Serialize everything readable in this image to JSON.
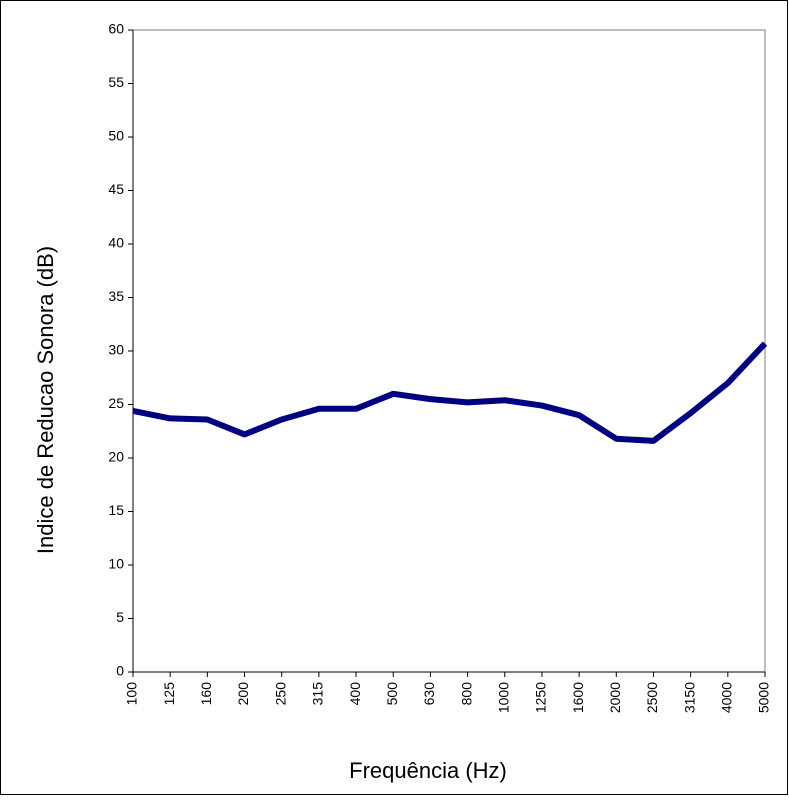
{
  "chart_data": {
    "type": "line",
    "x_label": "Frequência (Hz)",
    "y_label": "Indice de Reducao Sonora (dB)",
    "categories": [
      "100",
      "125",
      "160",
      "200",
      "250",
      "315",
      "400",
      "500",
      "630",
      "800",
      "1000",
      "1250",
      "1600",
      "2000",
      "2500",
      "3150",
      "4000",
      "5000"
    ],
    "series": [
      {
        "color": "#000080",
        "values": [
          24.4,
          23.7,
          23.6,
          22.2,
          23.6,
          24.6,
          24.6,
          26.0,
          25.5,
          25.2,
          25.4,
          24.9,
          24.0,
          21.8,
          21.6,
          24.2,
          27.0,
          30.7
        ]
      }
    ],
    "ylim": [
      0,
      60
    ],
    "yticks": [
      0,
      5,
      10,
      15,
      20,
      25,
      30,
      35,
      40,
      45,
      50,
      55,
      60
    ]
  }
}
